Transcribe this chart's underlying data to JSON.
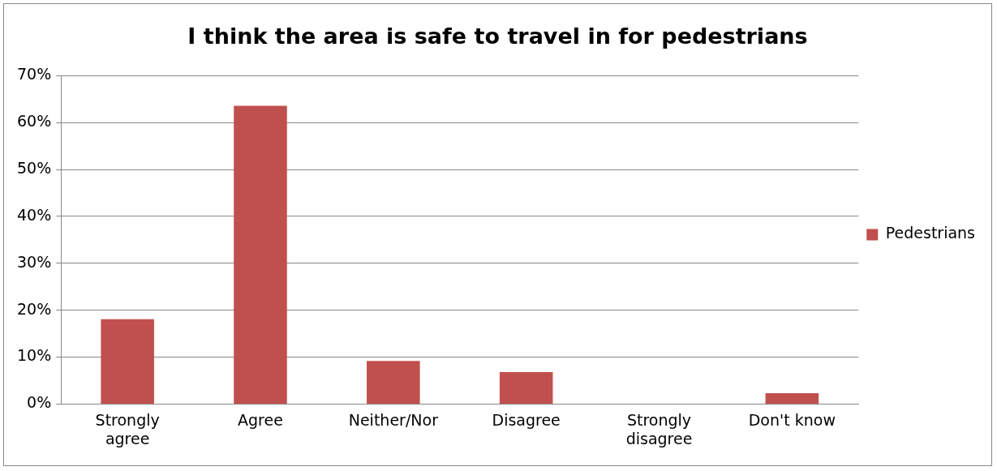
{
  "chart_data": {
    "type": "bar",
    "title": "I think the area is safe to travel in for pedestrians",
    "categories": [
      "Strongly agree",
      "Agree",
      "Neither/Nor",
      "Disagree",
      "Strongly disagree",
      "Don't know"
    ],
    "series": [
      {
        "name": "Pedestrians",
        "color": "#c0504d",
        "values": [
          18.1,
          63.6,
          9.2,
          6.8,
          0,
          2.3
        ]
      }
    ],
    "ylim": [
      0,
      70
    ],
    "yticks": [
      {
        "value": 0,
        "label": "0%"
      },
      {
        "value": 10,
        "label": "10%"
      },
      {
        "value": 20,
        "label": "20%"
      },
      {
        "value": 30,
        "label": "30%"
      },
      {
        "value": 40,
        "label": "40%"
      },
      {
        "value": 50,
        "label": "50%"
      },
      {
        "value": 60,
        "label": "60%"
      },
      {
        "value": 70,
        "label": "70%"
      }
    ],
    "grid": "y",
    "legend": "right"
  }
}
